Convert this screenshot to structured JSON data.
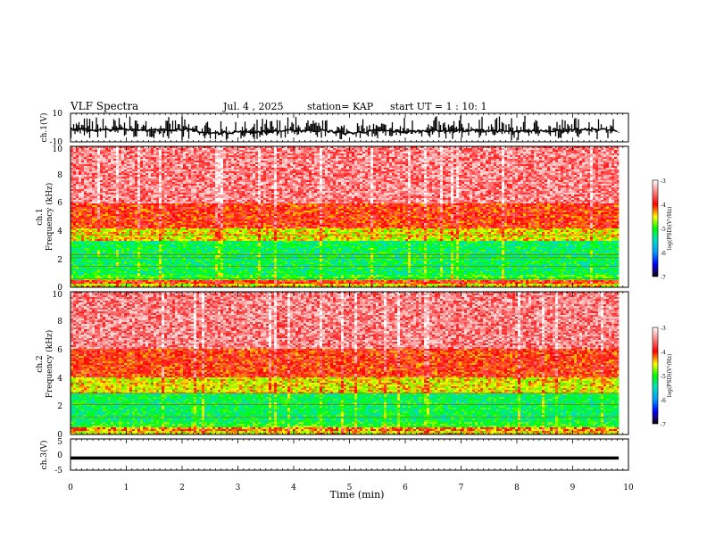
{
  "header": {
    "title": "VLF Spectra",
    "date": "Jul. 4 , 2025",
    "station": "station= KAP",
    "start": "start UT =  1 : 10: 1"
  },
  "chart_data": [
    {
      "type": "line",
      "ylabel": "ch.1(V)",
      "ylim": [
        -10,
        10
      ],
      "ytick_labels": [
        "10",
        "-10"
      ],
      "xlim": [
        0,
        10
      ],
      "t_end": 9.83,
      "x": [
        0,
        0.5,
        1,
        1.5,
        2,
        2.5,
        3,
        3.5,
        4,
        4.5,
        5,
        5.5,
        6,
        6.5,
        7,
        7.5,
        8,
        8.5,
        9,
        9.5,
        9.83
      ],
      "values": [
        -1,
        -2,
        -1,
        -2,
        -1,
        -4,
        -3,
        -3,
        -2,
        -2,
        -4,
        -2,
        -3,
        -2,
        -2,
        -2,
        -3,
        -2,
        -2,
        -1,
        -3
      ],
      "range_hi": [
        8,
        9,
        8,
        7,
        8,
        5,
        4,
        8,
        9,
        6,
        7,
        5,
        9,
        8,
        9,
        8,
        9,
        7,
        8,
        9,
        7
      ],
      "range_lo": [
        -9,
        -9,
        -8,
        -8,
        -9,
        -9,
        -9,
        -8,
        -9,
        -8,
        -9,
        -8,
        -9,
        -9,
        -8,
        -8,
        -9,
        -8,
        -8,
        -9,
        -8
      ]
    },
    {
      "type": "heatmap",
      "ylabel": "ch.1\nFrequency (kHz)",
      "ylim": [
        0,
        10
      ],
      "ytick_labels": [
        "0",
        "2",
        "4",
        "6",
        "8",
        "10"
      ],
      "xlim": [
        0,
        10
      ],
      "t_end": 9.83,
      "bands": [
        {
          "from": 0.0,
          "to": 0.2,
          "level": -4.5
        },
        {
          "from": 0.2,
          "to": 0.5,
          "level": -4.0
        },
        {
          "from": 0.5,
          "to": 0.9,
          "level": -5.0
        },
        {
          "from": 0.9,
          "to": 3.3,
          "level": -5.2
        },
        {
          "from": 3.3,
          "to": 4.2,
          "level": -4.5
        },
        {
          "from": 4.2,
          "to": 6.0,
          "level": -4.0
        },
        {
          "from": 6.0,
          "to": 10.0,
          "level": -3.5
        }
      ],
      "lines_khz": [
        0.6,
        1.5,
        2.1,
        2.3,
        3.7
      ],
      "colorbar": {
        "min": -7,
        "max": -3,
        "tick_labels": [
          "-3",
          "-4",
          "-5",
          "-6",
          "-7"
        ],
        "label": "log(PSD)(V²/Hz)"
      }
    },
    {
      "type": "heatmap",
      "ylabel": "ch.2\nFrequency (kHz)",
      "ylim": [
        0,
        10
      ],
      "ytick_labels": [
        "0",
        "2",
        "4",
        "6",
        "8",
        "10"
      ],
      "xlim": [
        0,
        10
      ],
      "t_end": 9.83,
      "bands": [
        {
          "from": 0.0,
          "to": 0.2,
          "level": -4.5
        },
        {
          "from": 0.2,
          "to": 0.5,
          "level": -4.2
        },
        {
          "from": 0.5,
          "to": 0.9,
          "level": -5.0
        },
        {
          "from": 0.9,
          "to": 2.9,
          "level": -5.2
        },
        {
          "from": 2.9,
          "to": 4.0,
          "level": -4.5
        },
        {
          "from": 4.0,
          "to": 6.0,
          "level": -4.0
        },
        {
          "from": 6.0,
          "to": 10.0,
          "level": -3.5
        }
      ],
      "lines_khz": [
        1.2,
        2.1,
        2.9
      ],
      "colorbar": {
        "min": -7,
        "max": -3,
        "tick_labels": [
          "-3",
          "-4",
          "-5",
          "-6",
          "-7"
        ],
        "label": "log(PSD)(V²/Hz)"
      }
    },
    {
      "type": "line",
      "ylabel": "ch.3(V)",
      "ylim": [
        -5,
        5
      ],
      "ytick_labels": [
        "5",
        "0",
        "-5"
      ],
      "xlim": [
        0,
        10
      ],
      "t_end": 9.83,
      "x": [
        0,
        9.83
      ],
      "values": [
        -1,
        -1
      ],
      "range_hi": [
        -0.6,
        -0.6
      ],
      "range_lo": [
        -1.6,
        -1.6
      ],
      "xlabel": "Time (min)",
      "xtick_labels": [
        "0",
        "1",
        "2",
        "3",
        "4",
        "5",
        "6",
        "7",
        "8",
        "9",
        "10"
      ]
    }
  ]
}
